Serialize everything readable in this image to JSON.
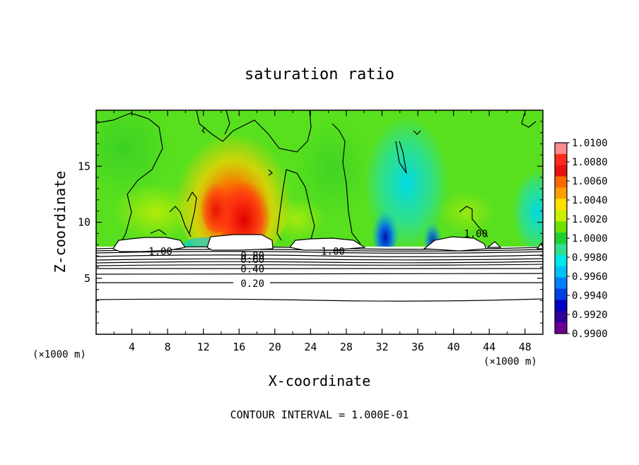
{
  "chart_data": {
    "type": "heatmap",
    "title": "saturation ratio",
    "xlabel": "X-coordinate",
    "ylabel": "Z-coordinate",
    "x_unit": "(×1000 m)",
    "y_unit": "(×1000 m)",
    "xlim": [
      0,
      50
    ],
    "ylim": [
      0,
      20
    ],
    "x_ticks": [
      4,
      8,
      12,
      16,
      20,
      24,
      28,
      32,
      36,
      40,
      44,
      48
    ],
    "y_ticks": [
      5,
      10,
      15
    ],
    "colorbar": {
      "min": 0.99,
      "max": 1.01,
      "labels": [
        "1.0100",
        "1.0080",
        "1.0060",
        "1.0040",
        "1.0020",
        "1.0000",
        "0.9980",
        "0.9960",
        "0.9940",
        "0.9920",
        "0.9900"
      ],
      "colors": [
        "#ff8c8c",
        "#ff2a1a",
        "#e81010",
        "#ff6a00",
        "#ffa000",
        "#ffe000",
        "#c8f000",
        "#70e000",
        "#20d030",
        "#30e090",
        "#00e8e8",
        "#00c0f8",
        "#0080ff",
        "#0040e0",
        "#0000c0",
        "#30009a",
        "#6a0090"
      ]
    },
    "contour_labels": [
      {
        "text": "1.00",
        "x": 7.2,
        "y": 7.4
      },
      {
        "text": "0.80",
        "x": 17.5,
        "y": 7.05
      },
      {
        "text": "0.60",
        "x": 17.5,
        "y": 6.7
      },
      {
        "text": "0.40",
        "x": 17.5,
        "y": 5.85
      },
      {
        "text": "0.20",
        "x": 17.5,
        "y": 4.55
      },
      {
        "text": "1.00",
        "x": 26.5,
        "y": 7.4
      },
      {
        "text": "1.00",
        "x": 42.5,
        "y": 9.0
      }
    ],
    "contour_interval_text": "CONTOUR INTERVAL = 1.000E-01"
  }
}
